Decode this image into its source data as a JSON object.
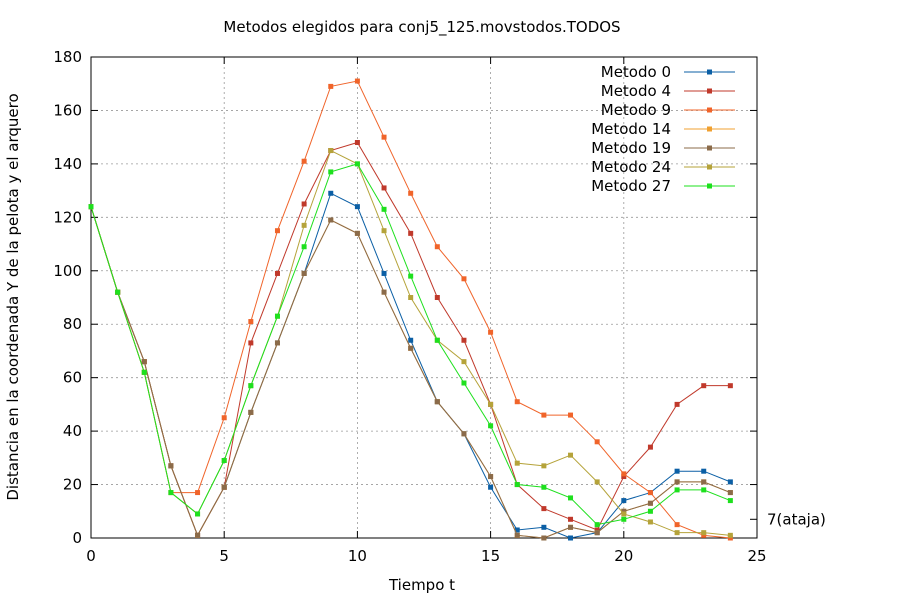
{
  "chart_data": {
    "type": "line",
    "title": "Metodos elegidos para conj5_125.movstodos.TODOS",
    "xlabel": "Tiempo t",
    "ylabel": "Distancia en la coordenada Y de la pelota y el arquero",
    "xlim": [
      0,
      25
    ],
    "ylim": [
      0,
      180
    ],
    "xticks": [
      0,
      5,
      10,
      15,
      20,
      25
    ],
    "yticks": [
      0,
      20,
      40,
      60,
      80,
      100,
      120,
      140,
      160,
      180
    ],
    "grid": true,
    "legend_position": "top-right",
    "annotation": {
      "text": "7(ataja)",
      "y": 7
    },
    "x": [
      0,
      1,
      2,
      3,
      4,
      5,
      6,
      7,
      8,
      9,
      10,
      11,
      12,
      13,
      14,
      15,
      16,
      17,
      18,
      19,
      20,
      21,
      22,
      23,
      24
    ],
    "series": [
      {
        "name": "Metodo 0",
        "color": "#0b5fa5",
        "values": [
          124,
          92,
          66,
          27,
          1,
          19,
          47,
          73,
          99,
          129,
          124,
          99,
          74,
          51,
          39,
          19,
          3,
          4,
          0,
          2,
          14,
          17,
          25,
          25,
          21
        ]
      },
      {
        "name": "Metodo 4",
        "color": "#c0392b",
        "values": [
          124,
          92,
          66,
          27,
          1,
          19,
          73,
          99,
          125,
          145,
          148,
          131,
          114,
          90,
          74,
          50,
          20,
          11,
          7,
          3,
          23,
          34,
          50,
          57,
          57
        ]
      },
      {
        "name": "Metodo 9",
        "color": "#f0642a",
        "values": [
          124,
          92,
          62,
          17,
          17,
          45,
          81,
          115,
          141,
          169,
          171,
          150,
          129,
          109,
          97,
          77,
          51,
          46,
          46,
          36,
          24,
          17,
          5,
          1,
          0
        ]
      },
      {
        "name": "Metodo 14",
        "color": "#f0a030",
        "values": [
          124,
          92,
          66,
          27,
          1,
          19,
          47,
          73,
          99,
          119,
          114,
          92,
          71,
          51,
          39,
          23,
          1,
          0,
          4,
          2,
          10,
          13,
          21,
          21,
          17
        ]
      },
      {
        "name": "Metodo 19",
        "color": "#8b6b4a",
        "values": [
          124,
          92,
          66,
          27,
          1,
          19,
          47,
          73,
          99,
          119,
          114,
          92,
          71,
          51,
          39,
          23,
          1,
          0,
          4,
          2,
          10,
          13,
          21,
          21,
          17
        ]
      },
      {
        "name": "Metodo 24",
        "color": "#b5a33a",
        "values": [
          124,
          92,
          62,
          17,
          9,
          29,
          57,
          83,
          117,
          145,
          140,
          115,
          90,
          74,
          66,
          50,
          28,
          27,
          31,
          21,
          9,
          6,
          2,
          2,
          1
        ]
      },
      {
        "name": "Metodo 27",
        "color": "#1ee01e",
        "values": [
          124,
          92,
          62,
          17,
          9,
          29,
          57,
          83,
          109,
          137,
          140,
          123,
          98,
          74,
          58,
          42,
          20,
          19,
          15,
          5,
          7,
          10,
          18,
          18,
          14
        ]
      }
    ]
  }
}
